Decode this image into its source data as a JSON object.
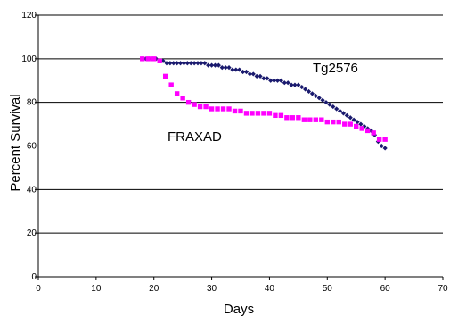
{
  "chart_data": {
    "type": "scatter",
    "title": "",
    "xlabel": "Days",
    "ylabel": "Percent Survival",
    "xlim": [
      0,
      70
    ],
    "ylim": [
      0,
      120
    ],
    "x_ticks": [
      "0",
      "10",
      "20",
      "30",
      "40",
      "50",
      "60",
      "70"
    ],
    "y_ticks": [
      "0",
      "20",
      "40",
      "60",
      "80",
      "100",
      "120"
    ],
    "grid": "horizontal",
    "legend": "none",
    "series": [
      {
        "name": "Tg2576",
        "color": "#1a1a6e",
        "marker": "diamond",
        "x": [
          18,
          18.6,
          19.2,
          19.8,
          20.4,
          21,
          21.6,
          22.2,
          22.8,
          23.4,
          24,
          24.6,
          25.2,
          25.8,
          26.4,
          27,
          27.6,
          28.2,
          28.8,
          29.4,
          30,
          30.6,
          31.2,
          31.8,
          32.4,
          33,
          33.6,
          34.2,
          34.8,
          35.4,
          36,
          36.6,
          37.2,
          37.8,
          38.4,
          39,
          39.6,
          40.2,
          40.8,
          41.4,
          42,
          42.6,
          43.2,
          43.8,
          44.4,
          45,
          45.6,
          46.2,
          46.8,
          47.4,
          48,
          48.6,
          49.2,
          49.8,
          50.4,
          51,
          51.6,
          52.2,
          52.8,
          53.4,
          54,
          54.6,
          55.2,
          55.8,
          56.4,
          57,
          57.6,
          58.2,
          58.8,
          59.4,
          60
        ],
        "y": [
          100,
          100,
          100,
          100,
          100,
          99,
          99,
          98,
          98,
          98,
          98,
          98,
          98,
          98,
          98,
          98,
          98,
          98,
          98,
          97,
          97,
          97,
          97,
          96,
          96,
          96,
          95,
          95,
          95,
          94,
          94,
          93,
          93,
          92,
          92,
          91,
          91,
          90,
          90,
          90,
          90,
          89,
          89,
          88,
          88,
          88,
          87,
          86,
          85,
          84,
          83,
          82,
          81,
          80,
          79,
          78,
          77,
          76,
          75,
          74,
          73,
          72,
          71,
          70,
          69,
          68,
          67,
          65,
          62,
          60,
          59
        ]
      },
      {
        "name": "FRAXAD",
        "color": "#ff00ff",
        "marker": "square",
        "x": [
          18,
          19,
          20,
          21,
          22,
          23,
          24,
          25,
          26,
          27,
          28,
          29,
          30,
          31,
          32,
          33,
          34,
          35,
          36,
          37,
          38,
          39,
          40,
          41,
          42,
          43,
          44,
          45,
          46,
          47,
          48,
          49,
          50,
          51,
          52,
          53,
          54,
          55,
          56,
          57,
          58,
          59,
          60
        ],
        "y": [
          100,
          100,
          100,
          99,
          92,
          88,
          84,
          82,
          80,
          79,
          78,
          78,
          77,
          77,
          77,
          77,
          76,
          76,
          75,
          75,
          75,
          75,
          75,
          74,
          74,
          73,
          73,
          73,
          72,
          72,
          72,
          72,
          71,
          71,
          71,
          70,
          70,
          69,
          68,
          67,
          66,
          63,
          63
        ]
      }
    ]
  },
  "labels": {
    "tg_series": "Tg2576",
    "frax_series": "FRAXAD"
  }
}
